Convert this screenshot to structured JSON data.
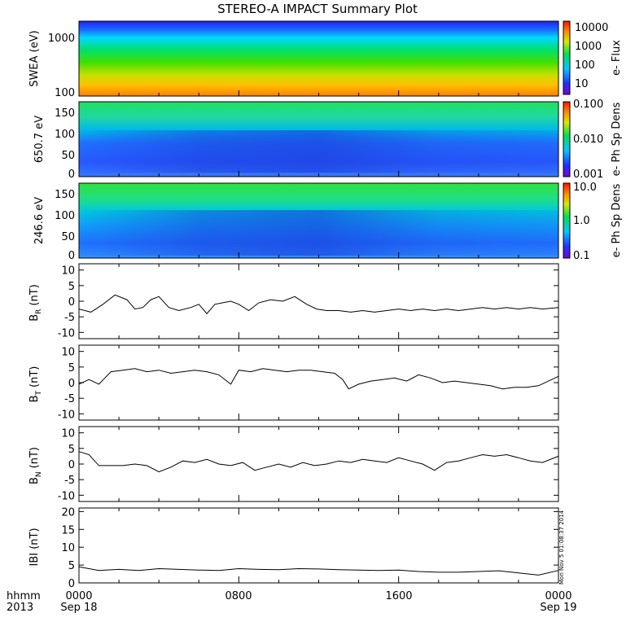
{
  "title": "STEREO-A IMPACT Summary Plot",
  "timestamp_note": "Mon Nov 5 01:08:37 2014",
  "time_axis": {
    "row1_label": "hhmm",
    "row2_label": "2013",
    "ticks": [
      {
        "time": "0000",
        "date": "Sep 18"
      },
      {
        "time": "0800",
        "date": ""
      },
      {
        "time": "1600",
        "date": ""
      },
      {
        "time": "0000",
        "date": "Sep 19"
      }
    ]
  },
  "colorbars": [
    {
      "label": "e- Flux",
      "ticks": [
        "10000",
        "1000",
        "100",
        "10"
      ]
    },
    {
      "label": "e- Ph Sp Dens",
      "ticks": [
        "0.100",
        "0.010",
        "0.001"
      ]
    },
    {
      "label": "e- Ph Sp Dens",
      "ticks": [
        "10.0",
        "1.0",
        "0.1"
      ]
    }
  ],
  "chart_data": [
    {
      "type": "heatmap",
      "ylabel": "SWEA (eV)",
      "y_ticks": [
        "1000",
        "100"
      ],
      "y_scale": "log",
      "colorbar_label": "e- Flux",
      "x_range_hours": [
        0,
        24
      ],
      "colormap": "rainbow (violet-blue-cyan-green-yellow-red)",
      "description_levels": {
        "high_energy": "blue",
        "mid_energy": "green",
        "low_energy": "orange"
      }
    },
    {
      "type": "heatmap",
      "ylabel": "650.7 eV",
      "y_ticks": [
        "150",
        "100",
        "50",
        "0"
      ],
      "ylim": [
        0,
        180
      ],
      "colorbar_label": "e- Ph Sp Dens",
      "x_range_hours": [
        0,
        24
      ]
    },
    {
      "type": "heatmap",
      "ylabel": "246.6 eV",
      "y_ticks": [
        "150",
        "100",
        "50",
        "0"
      ],
      "ylim": [
        0,
        180
      ],
      "colorbar_label": "e- Ph Sp Dens",
      "x_range_hours": [
        0,
        24
      ]
    },
    {
      "type": "line",
      "ylabel": "B_R (nT)",
      "ylabel_main": "B",
      "ylabel_sub": "R",
      "ylabel_unit": "(nT)",
      "ylim": [
        -12,
        12
      ],
      "y_ticks": [
        10,
        5,
        0,
        -5,
        -10
      ],
      "x_hours": [
        0,
        0.6,
        1.2,
        1.8,
        2.4,
        2.8,
        3.2,
        3.6,
        4.0,
        4.5,
        5.0,
        5.6,
        6.0,
        6.4,
        6.8,
        7.2,
        7.6,
        8.0,
        8.5,
        9.0,
        9.6,
        10.2,
        10.8,
        11.4,
        11.9,
        12.4,
        13.0,
        13.6,
        14.2,
        14.8,
        15.4,
        16.0,
        16.6,
        17.2,
        17.8,
        18.4,
        19.0,
        19.6,
        20.2,
        20.8,
        21.4,
        22.0,
        22.6,
        23.2,
        24.0
      ],
      "values": [
        -2.5,
        -3.5,
        -1.0,
        2.0,
        0.5,
        -2.5,
        -2.0,
        0.5,
        1.5,
        -2.0,
        -3.0,
        -2.0,
        -1.0,
        -4.0,
        -1.0,
        -0.5,
        0.0,
        -1.0,
        -3.0,
        -0.5,
        0.5,
        0.0,
        1.5,
        -1.0,
        -2.5,
        -3.0,
        -3.0,
        -3.5,
        -3.0,
        -3.5,
        -3.0,
        -2.5,
        -3.0,
        -2.5,
        -3.0,
        -2.5,
        -3.0,
        -2.5,
        -2.0,
        -2.5,
        -2.0,
        -2.5,
        -2.0,
        -2.5,
        -2.0
      ]
    },
    {
      "type": "line",
      "ylabel": "B_T (nT)",
      "ylabel_main": "B",
      "ylabel_sub": "T",
      "ylabel_unit": "(nT)",
      "ylim": [
        -12,
        12
      ],
      "y_ticks": [
        10,
        5,
        0,
        -5,
        -10
      ],
      "x_hours": [
        0,
        0.5,
        1.0,
        1.6,
        2.2,
        2.8,
        3.4,
        4.0,
        4.6,
        5.2,
        5.8,
        6.4,
        7.0,
        7.6,
        8.0,
        8.6,
        9.2,
        9.8,
        10.4,
        11.0,
        11.6,
        12.2,
        12.8,
        13.2,
        13.5,
        14.0,
        14.6,
        15.2,
        15.8,
        16.4,
        17.0,
        17.6,
        18.2,
        18.8,
        19.4,
        20.0,
        20.6,
        21.2,
        21.8,
        22.4,
        23.0,
        23.5,
        24.0
      ],
      "values": [
        -0.5,
        1.0,
        -0.5,
        3.5,
        4.0,
        4.5,
        3.5,
        4.0,
        3.0,
        3.5,
        4.0,
        3.5,
        2.5,
        -0.5,
        4.0,
        3.5,
        4.5,
        4.0,
        3.5,
        4.0,
        4.0,
        3.5,
        3.0,
        1.0,
        -2.0,
        -0.5,
        0.5,
        1.0,
        1.5,
        0.5,
        2.5,
        1.5,
        0.0,
        0.5,
        0.0,
        -0.5,
        -1.0,
        -2.0,
        -1.5,
        -1.5,
        -1.0,
        0.5,
        2.0
      ]
    },
    {
      "type": "line",
      "ylabel": "B_N (nT)",
      "ylabel_main": "B",
      "ylabel_sub": "N",
      "ylabel_unit": "(nT)",
      "ylim": [
        -12,
        12
      ],
      "y_ticks": [
        10,
        5,
        0,
        -5,
        -10
      ],
      "x_hours": [
        0,
        0.5,
        1.0,
        1.6,
        2.2,
        2.8,
        3.4,
        4.0,
        4.6,
        5.2,
        5.8,
        6.4,
        7.0,
        7.6,
        8.2,
        8.8,
        9.4,
        10.0,
        10.6,
        11.2,
        11.8,
        12.4,
        13.0,
        13.6,
        14.2,
        14.8,
        15.4,
        16.0,
        16.6,
        17.2,
        17.8,
        18.4,
        19.0,
        19.6,
        20.2,
        20.8,
        21.4,
        22.0,
        22.6,
        23.2,
        24.0
      ],
      "values": [
        4.0,
        3.0,
        -0.5,
        -0.5,
        -0.5,
        0.0,
        -0.5,
        -2.5,
        -1.0,
        1.0,
        0.5,
        1.5,
        0.0,
        -0.5,
        0.5,
        -2.0,
        -1.0,
        0.0,
        -1.0,
        0.5,
        -0.5,
        0.0,
        1.0,
        0.5,
        1.5,
        1.0,
        0.5,
        2.0,
        1.0,
        0.0,
        -2.0,
        0.5,
        1.0,
        2.0,
        3.0,
        2.5,
        3.0,
        2.0,
        1.0,
        0.5,
        2.5
      ]
    },
    {
      "type": "line",
      "ylabel": "IBI (nT)",
      "ylim": [
        0,
        21
      ],
      "y_ticks": [
        20,
        15,
        10,
        5,
        0
      ],
      "x_hours": [
        0,
        1,
        2,
        3,
        4,
        5,
        6,
        7,
        8,
        9,
        10,
        11,
        12,
        13,
        14,
        15,
        16,
        17,
        18,
        19,
        20,
        21,
        22,
        23,
        24
      ],
      "values": [
        4.5,
        3.5,
        3.8,
        3.5,
        4.0,
        3.8,
        3.6,
        3.5,
        4.0,
        3.8,
        3.7,
        4.0,
        3.9,
        3.7,
        3.6,
        3.5,
        3.6,
        3.2,
        3.0,
        3.0,
        3.2,
        3.4,
        2.8,
        2.2,
        3.5
      ]
    }
  ]
}
